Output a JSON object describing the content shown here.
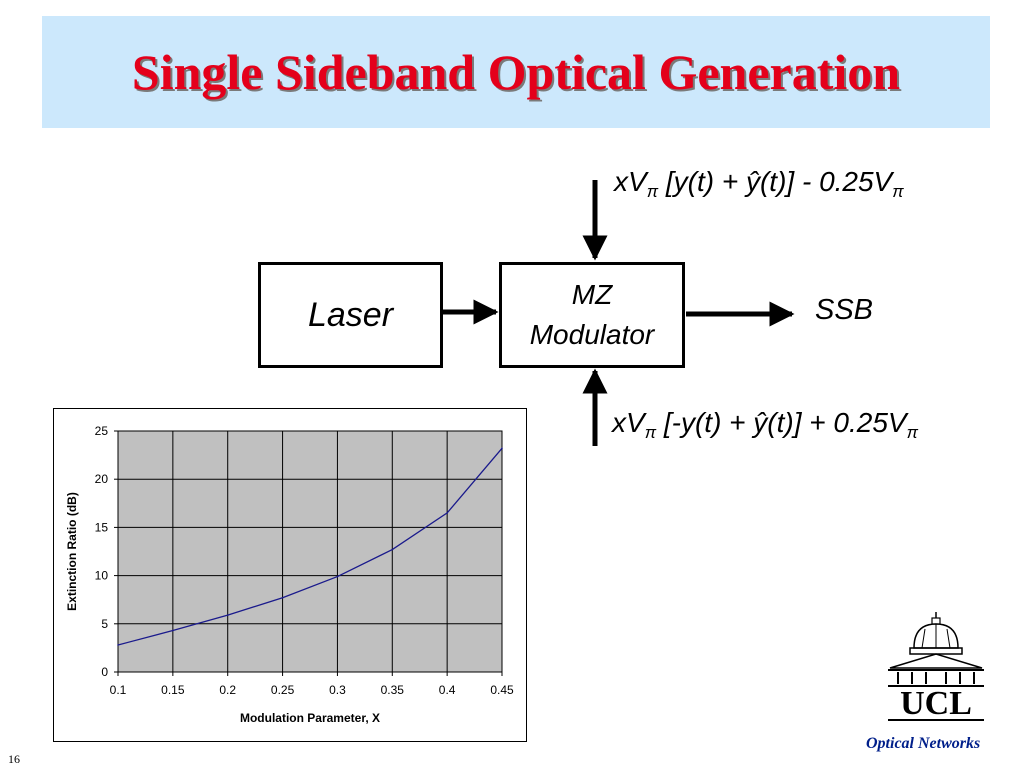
{
  "title": "Single Sideband Optical Generation",
  "diagram": {
    "laser_label": "Laser",
    "modulator_line1": "MZ",
    "modulator_line2": "Modulator",
    "output_label": "SSB",
    "formula_top": {
      "part1": "xV",
      "sub1": "π",
      "part2": " [y(t) + ŷ(t)] - 0.25V",
      "sub2": "π"
    },
    "formula_bottom": {
      "part1": "xV",
      "sub1": "π",
      "part2": " [-y(t) + ŷ(t)] + 0.25V",
      "sub2": "π"
    }
  },
  "chart_data": {
    "type": "line",
    "title": "",
    "xlabel": "Modulation Parameter, X",
    "ylabel": "Extinction Ratio (dB)",
    "xlim": [
      0.1,
      0.45
    ],
    "ylim": [
      0,
      25
    ],
    "x_ticks": [
      "0.1",
      "0.15",
      "0.2",
      "0.25",
      "0.3",
      "0.35",
      "0.4",
      "0.45"
    ],
    "y_ticks": [
      "0",
      "5",
      "10",
      "15",
      "20",
      "25"
    ],
    "grid": true,
    "plot_background": "#c0c0c0",
    "line_color": "#1a1a8c",
    "series": [
      {
        "x": [
          0.1,
          0.15,
          0.2,
          0.25,
          0.3,
          0.35,
          0.4,
          0.45
        ],
        "y": [
          2.8,
          4.3,
          5.9,
          7.7,
          9.9,
          12.7,
          16.5,
          23.2
        ]
      }
    ]
  },
  "footer": {
    "logo_text": "UCL",
    "label": "Optical Networks",
    "slide_number": "16"
  },
  "colors": {
    "title": "#e4001b",
    "title_band": "#cce8fc",
    "footer_label": "#001f8a"
  }
}
